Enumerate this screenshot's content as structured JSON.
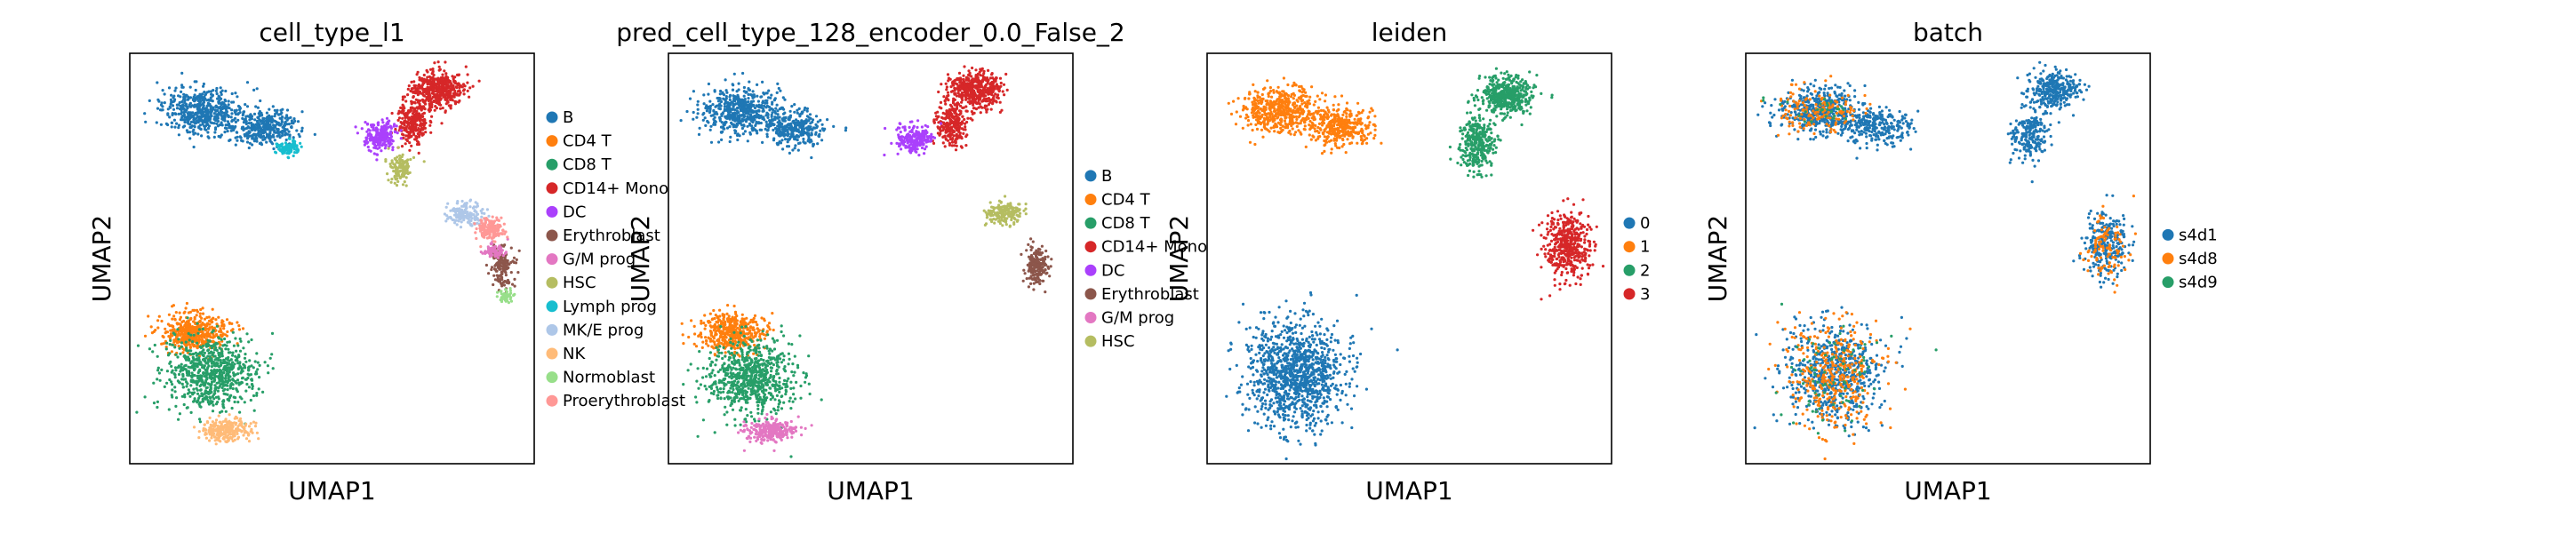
{
  "chart_data": [
    {
      "type": "scatter",
      "title": "cell_type_l1",
      "xlabel": "UMAP1",
      "ylabel": "UMAP2",
      "grid": false,
      "legend_placement": "right",
      "series": [
        {
          "name": "B",
          "color": "#1f77b4",
          "clusters": [
            [
              0.18,
              0.14,
              0.11,
              0.06,
              1.0
            ],
            [
              0.33,
              0.18,
              0.09,
              0.05,
              0.7
            ]
          ]
        },
        {
          "name": "CD4 T",
          "color": "#ff7f0e",
          "clusters": [
            [
              0.16,
              0.68,
              0.09,
              0.05,
              0.9
            ]
          ]
        },
        {
          "name": "CD8 T",
          "color": "#279e68",
          "clusters": [
            [
              0.2,
              0.78,
              0.12,
              0.1,
              1.4
            ]
          ]
        },
        {
          "name": "CD14+ Mono",
          "color": "#d62728",
          "clusters": [
            [
              0.76,
              0.09,
              0.07,
              0.05,
              0.9
            ],
            [
              0.7,
              0.17,
              0.04,
              0.06,
              0.5
            ]
          ]
        },
        {
          "name": "DC",
          "color": "#aa40fc",
          "clusters": [
            [
              0.62,
              0.2,
              0.05,
              0.04,
              0.4
            ]
          ]
        },
        {
          "name": "Erythroblast",
          "color": "#8c564b",
          "clusters": [
            [
              0.92,
              0.52,
              0.03,
              0.05,
              0.3
            ]
          ]
        },
        {
          "name": "G/M prog",
          "color": "#e377c2",
          "clusters": [
            [
              0.9,
              0.48,
              0.03,
              0.02,
              0.15
            ]
          ]
        },
        {
          "name": "HSC",
          "color": "#b5bd61",
          "clusters": [
            [
              0.67,
              0.28,
              0.03,
              0.04,
              0.25
            ]
          ]
        },
        {
          "name": "Lymph prog",
          "color": "#17becf",
          "clusters": [
            [
              0.39,
              0.23,
              0.03,
              0.02,
              0.2
            ]
          ]
        },
        {
          "name": "MK/E prog",
          "color": "#aec7e8",
          "clusters": [
            [
              0.83,
              0.39,
              0.05,
              0.03,
              0.3
            ]
          ]
        },
        {
          "name": "NK",
          "color": "#ffbb78",
          "clusters": [
            [
              0.24,
              0.92,
              0.07,
              0.03,
              0.5
            ]
          ]
        },
        {
          "name": "Normoblast",
          "color": "#98df8a",
          "clusters": [
            [
              0.93,
              0.59,
              0.02,
              0.02,
              0.1
            ]
          ]
        },
        {
          "name": "Proerythroblast",
          "color": "#ff9896",
          "clusters": [
            [
              0.89,
              0.43,
              0.04,
              0.03,
              0.3
            ]
          ]
        }
      ]
    },
    {
      "type": "scatter",
      "title": "pred_cell_type_128_encoder_0.0_False_2",
      "xlabel": "UMAP1",
      "ylabel": "UMAP2",
      "grid": false,
      "legend_placement": "right",
      "series": [
        {
          "name": "B",
          "color": "#1f77b4",
          "clusters": [
            [
              0.18,
              0.14,
              0.11,
              0.06,
              1.0
            ],
            [
              0.31,
              0.18,
              0.08,
              0.05,
              0.6
            ]
          ]
        },
        {
          "name": "CD4 T",
          "color": "#ff7f0e",
          "clusters": [
            [
              0.16,
              0.68,
              0.09,
              0.05,
              0.9
            ]
          ]
        },
        {
          "name": "CD8 T",
          "color": "#279e68",
          "clusters": [
            [
              0.2,
              0.79,
              0.12,
              0.1,
              1.4
            ]
          ]
        },
        {
          "name": "CD14+ Mono",
          "color": "#d62728",
          "clusters": [
            [
              0.76,
              0.09,
              0.07,
              0.05,
              0.9
            ],
            [
              0.7,
              0.17,
              0.04,
              0.06,
              0.5
            ]
          ]
        },
        {
          "name": "DC",
          "color": "#aa40fc",
          "clusters": [
            [
              0.61,
              0.21,
              0.05,
              0.04,
              0.4
            ]
          ]
        },
        {
          "name": "Erythroblast",
          "color": "#8c564b",
          "clusters": [
            [
              0.91,
              0.52,
              0.03,
              0.05,
              0.35
            ]
          ]
        },
        {
          "name": "G/M prog",
          "color": "#e377c2",
          "clusters": [
            [
              0.25,
              0.92,
              0.07,
              0.03,
              0.5
            ]
          ]
        },
        {
          "name": "HSC",
          "color": "#b5bd61",
          "clusters": [
            [
              0.83,
              0.39,
              0.05,
              0.03,
              0.35
            ]
          ]
        }
      ]
    },
    {
      "type": "scatter",
      "title": "leiden",
      "xlabel": "UMAP1",
      "ylabel": "UMAP2",
      "grid": false,
      "legend_placement": "right",
      "series": [
        {
          "name": "0",
          "color": "#1f77b4",
          "clusters": [
            [
              0.22,
              0.78,
              0.13,
              0.14,
              2.2
            ]
          ]
        },
        {
          "name": "1",
          "color": "#ff7f0e",
          "clusters": [
            [
              0.18,
              0.14,
              0.11,
              0.06,
              1.0
            ],
            [
              0.33,
              0.18,
              0.09,
              0.05,
              0.7
            ]
          ]
        },
        {
          "name": "2",
          "color": "#279e68",
          "clusters": [
            [
              0.74,
              0.1,
              0.07,
              0.05,
              0.9
            ],
            [
              0.67,
              0.22,
              0.05,
              0.07,
              0.6
            ]
          ]
        },
        {
          "name": "3",
          "color": "#d62728",
          "clusters": [
            [
              0.89,
              0.47,
              0.06,
              0.09,
              0.9
            ]
          ]
        }
      ]
    },
    {
      "type": "scatter",
      "title": "batch",
      "xlabel": "UMAP1",
      "ylabel": "UMAP2",
      "grid": false,
      "legend_placement": "right",
      "series": [
        {
          "name": "s4d1",
          "color": "#1f77b4",
          "clusters": [
            [
              0.18,
              0.14,
              0.11,
              0.06,
              0.9
            ],
            [
              0.33,
              0.18,
              0.09,
              0.05,
              0.5
            ],
            [
              0.22,
              0.78,
              0.13,
              0.14,
              1.2
            ],
            [
              0.76,
              0.09,
              0.07,
              0.05,
              0.6
            ],
            [
              0.7,
              0.2,
              0.05,
              0.07,
              0.4
            ],
            [
              0.89,
              0.47,
              0.06,
              0.09,
              0.5
            ]
          ]
        },
        {
          "name": "s4d8",
          "color": "#ff7f0e",
          "clusters": [
            [
              0.18,
              0.14,
              0.11,
              0.06,
              0.3
            ],
            [
              0.22,
              0.78,
              0.13,
              0.14,
              0.7
            ],
            [
              0.89,
              0.47,
              0.06,
              0.09,
              0.2
            ]
          ]
        },
        {
          "name": "s4d9",
          "color": "#279e68",
          "clusters": [
            [
              0.22,
              0.78,
              0.13,
              0.14,
              0.15
            ],
            [
              0.18,
              0.14,
              0.11,
              0.06,
              0.05
            ]
          ]
        }
      ]
    }
  ]
}
